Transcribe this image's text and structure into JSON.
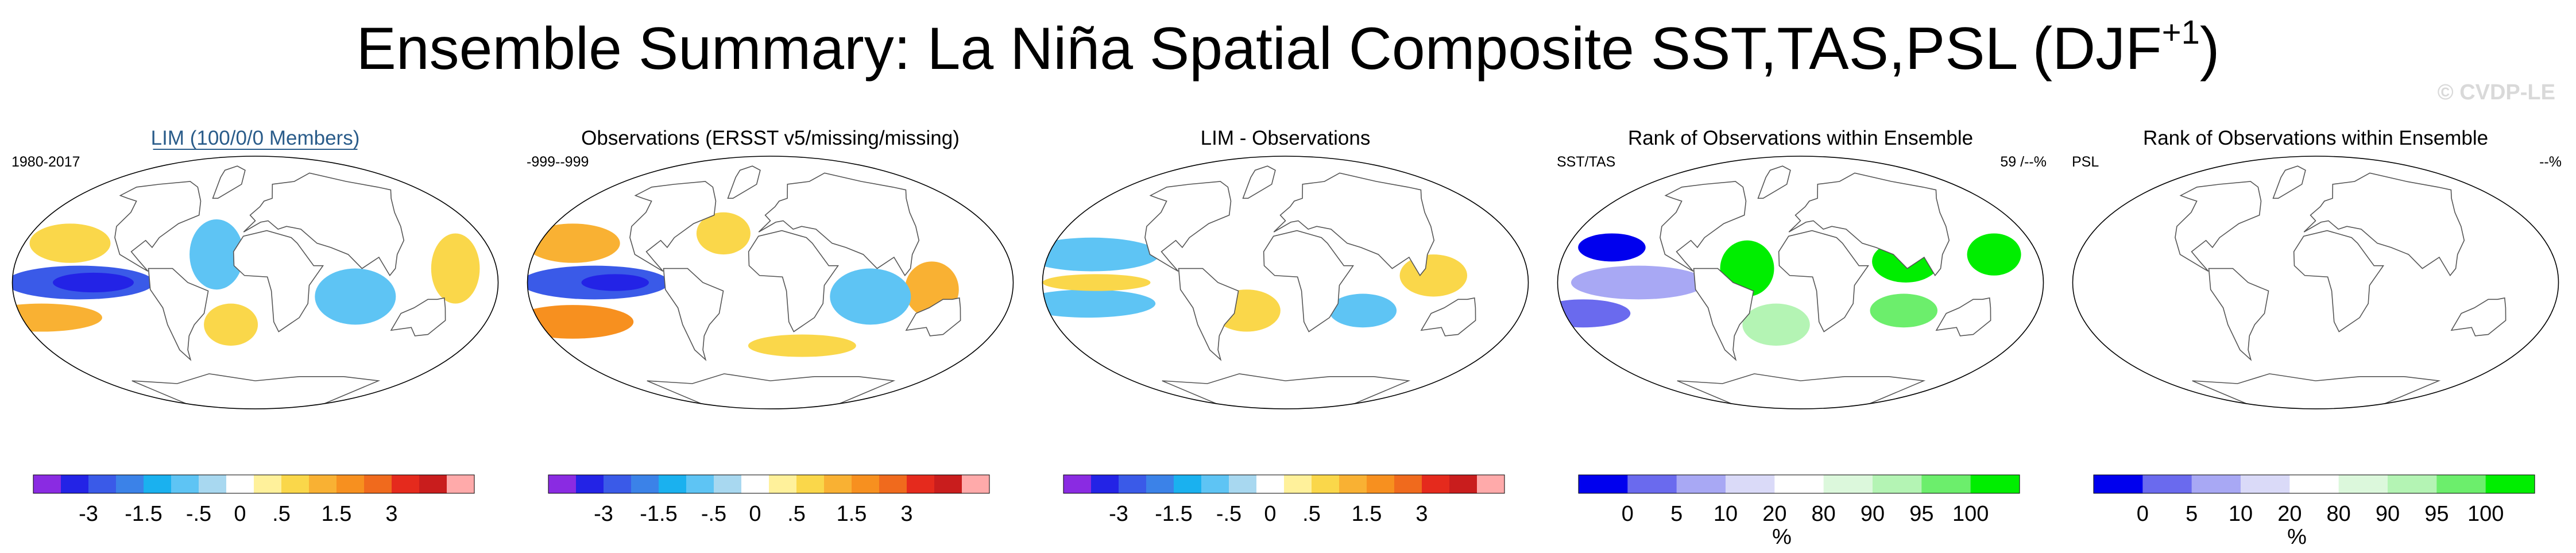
{
  "title": {
    "main": "Ensemble Summary: La Niña Spatial Composite SST,TAS,PSL (DJF",
    "sup": "+1",
    "close": ")"
  },
  "watermark": "© CVDP-LE",
  "colors": {
    "diverging": [
      "#8a2be2",
      "#2323e6",
      "#3a5ae8",
      "#3b82e8",
      "#1ab1ef",
      "#5ec4f4",
      "#a8d8f0",
      "#ffffff",
      "#fff19b",
      "#fad74a",
      "#f9b133",
      "#f7901f",
      "#f06a1d",
      "#e52a1d",
      "#c91d1d",
      "#ffaaaa"
    ],
    "rank": [
      "#0000ee",
      "#6a6aee",
      "#a8a8f4",
      "#dadaf8",
      "#ffffff",
      "#dcf8dc",
      "#b4f4b4",
      "#6cee6c",
      "#00ee00"
    ],
    "land": "#ffffff",
    "coast": "#555555"
  },
  "chart_data": [
    {
      "type": "heatmap",
      "title": "LIM (100/0/0 Members)",
      "left_label": "1980-2017",
      "right_label": "",
      "colorbar": {
        "ticks": [
          "-3",
          "-1.5",
          "-.5",
          "0",
          ".5",
          "1.5",
          "3"
        ],
        "unit": ""
      },
      "pattern": [
        {
          "lon": -130,
          "lat": 0,
          "rx": 55,
          "ry": 12,
          "v": -2.2
        },
        {
          "lon": -120,
          "lat": 0,
          "rx": 30,
          "ry": 7,
          "v": -3.5
        },
        {
          "lon": -150,
          "lat": 28,
          "rx": 30,
          "ry": 14,
          "v": 0.9
        },
        {
          "lon": -170,
          "lat": -25,
          "rx": 45,
          "ry": 10,
          "v": 1.4
        },
        {
          "lon": 150,
          "lat": 10,
          "rx": 18,
          "ry": 25,
          "v": 0.8
        },
        {
          "lon": 75,
          "lat": -10,
          "rx": 30,
          "ry": 20,
          "v": -0.7
        },
        {
          "lon": -30,
          "lat": 20,
          "rx": 20,
          "ry": 25,
          "v": -0.6
        },
        {
          "lon": -20,
          "lat": -30,
          "rx": 20,
          "ry": 15,
          "v": 0.6
        }
      ]
    },
    {
      "type": "heatmap",
      "title": "Observations (ERSST v5/missing/missing)",
      "left_label": "-999--999",
      "right_label": "",
      "colorbar": {
        "ticks": [
          "-3",
          "-1.5",
          "-.5",
          "0",
          ".5",
          "1.5",
          "3"
        ],
        "unit": ""
      },
      "pattern": [
        {
          "lon": -130,
          "lat": 0,
          "rx": 55,
          "ry": 12,
          "v": -2.0
        },
        {
          "lon": -115,
          "lat": 0,
          "rx": 25,
          "ry": 6,
          "v": -3.0
        },
        {
          "lon": -160,
          "lat": 28,
          "rx": 35,
          "ry": 14,
          "v": 1.5
        },
        {
          "lon": -160,
          "lat": -28,
          "rx": 45,
          "ry": 12,
          "v": 1.6
        },
        {
          "lon": 120,
          "lat": -5,
          "rx": 20,
          "ry": 20,
          "v": 1.2
        },
        {
          "lon": 75,
          "lat": -10,
          "rx": 30,
          "ry": 20,
          "v": -0.7
        },
        {
          "lon": -40,
          "lat": 35,
          "rx": 20,
          "ry": 15,
          "v": 0.8
        },
        {
          "lon": 30,
          "lat": -45,
          "rx": 40,
          "ry": 8,
          "v": 0.8
        }
      ]
    },
    {
      "type": "heatmap",
      "title": "LIM - Observations",
      "left_label": "",
      "right_label": "",
      "colorbar": {
        "ticks": [
          "-3",
          "-1.5",
          "-.5",
          "0",
          ".5",
          "1.5",
          "3"
        ],
        "unit": ""
      },
      "pattern": [
        {
          "lon": -150,
          "lat": 20,
          "rx": 50,
          "ry": 12,
          "v": -0.6
        },
        {
          "lon": -150,
          "lat": -15,
          "rx": 50,
          "ry": 10,
          "v": -0.6
        },
        {
          "lon": -140,
          "lat": 0,
          "rx": 40,
          "ry": 6,
          "v": 0.7
        },
        {
          "lon": 110,
          "lat": 5,
          "rx": 25,
          "ry": 15,
          "v": 0.6
        },
        {
          "lon": -30,
          "lat": -20,
          "rx": 25,
          "ry": 15,
          "v": 0.6
        },
        {
          "lon": 60,
          "lat": -20,
          "rx": 25,
          "ry": 12,
          "v": -0.6
        }
      ]
    },
    {
      "type": "heatmap",
      "title": "Rank of Observations within Ensemble",
      "left_label": "SST/TAS",
      "right_label": "59 /--%",
      "colorbar": {
        "ticks": [
          "0",
          "5",
          "10",
          "20",
          "80",
          "90",
          "95",
          "100"
        ],
        "unit": "%"
      },
      "pattern": [
        {
          "lon": -120,
          "lat": 0,
          "rx": 50,
          "ry": 12,
          "v": 2
        },
        {
          "lon": -150,
          "lat": 25,
          "rx": 25,
          "ry": 10,
          "v": 0
        },
        {
          "lon": -170,
          "lat": -22,
          "rx": 35,
          "ry": 10,
          "v": 1
        },
        {
          "lon": 80,
          "lat": 15,
          "rx": 25,
          "ry": 15,
          "v": 8
        },
        {
          "lon": 150,
          "lat": 20,
          "rx": 20,
          "ry": 15,
          "v": 8
        },
        {
          "lon": -40,
          "lat": 10,
          "rx": 20,
          "ry": 20,
          "v": 8
        },
        {
          "lon": 80,
          "lat": -20,
          "rx": 25,
          "ry": 12,
          "v": 7
        },
        {
          "lon": -20,
          "lat": -30,
          "rx": 25,
          "ry": 15,
          "v": 6
        }
      ]
    },
    {
      "type": "heatmap",
      "title": "Rank of Observations within Ensemble",
      "left_label": "PSL",
      "right_label": "--%",
      "colorbar": {
        "ticks": [
          "0",
          "5",
          "10",
          "20",
          "80",
          "90",
          "95",
          "100"
        ],
        "unit": "%"
      },
      "pattern": []
    }
  ]
}
